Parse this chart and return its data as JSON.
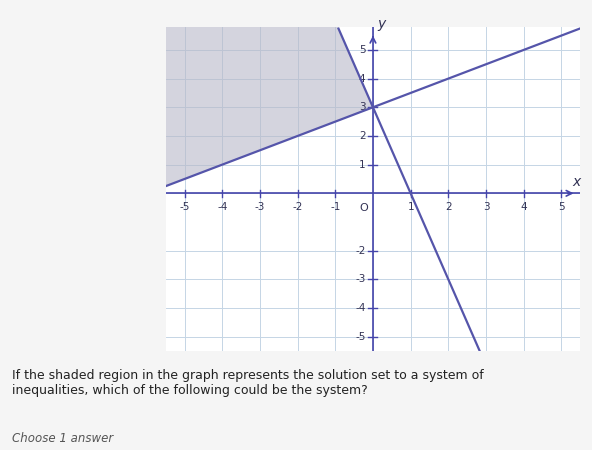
{
  "xlabel": "x",
  "ylabel": "y",
  "xlim": [
    -5.5,
    5.5
  ],
  "ylim": [
    -5.5,
    5.8
  ],
  "xticks": [
    -5,
    -4,
    -3,
    -2,
    -1,
    1,
    2,
    3,
    4,
    5
  ],
  "yticks": [
    -5,
    -4,
    -3,
    -2,
    1,
    2,
    3,
    4,
    5
  ],
  "line1_slope": -3,
  "line1_intercept": 3,
  "line2_slope": 0.5,
  "line2_intercept": 3,
  "line_color": "#5555aa",
  "shade_color": "#b8b8c8",
  "shade_alpha": 0.6,
  "bg_color": "#f5f5f5",
  "grid_color": "#c5d5e5",
  "axis_color": "#4444aa",
  "text_color": "#333355",
  "question_text": "If the shaded region in the graph represents the solution set to a system of\ninequalities, which of the following could be the system?",
  "choose_text": "Choose 1 answer",
  "font_size": 10
}
